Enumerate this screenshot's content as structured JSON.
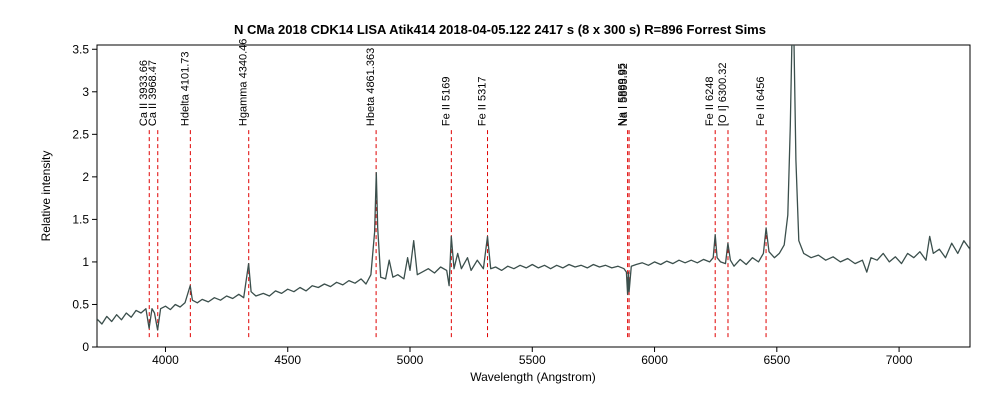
{
  "chart_data": {
    "type": "line",
    "title": "N CMa 2018 CDK14 LISA Atik414  2018-04-05.122   2417 s (8 x 300 s) R=896  Forrest Sims",
    "xlabel": "Wavelength (Angstrom)",
    "ylabel": "Relative intensity",
    "xlim": [
      3720,
      7290
    ],
    "ylim": [
      0,
      3.55
    ],
    "x_ticks": [
      4000,
      4500,
      5000,
      5500,
      6000,
      6500,
      7000
    ],
    "y_ticks": [
      0,
      0.5,
      1,
      1.5,
      2,
      2.5,
      3,
      3.5
    ],
    "grid": false,
    "legend": "none",
    "colors": {
      "spectrum": "#3b4f4c",
      "line_markers": "#e00000",
      "axes": "#000000"
    },
    "line_markers": [
      {
        "wavelength": 3933.66,
        "label": "Ca II 3933.66"
      },
      {
        "wavelength": 3968.47,
        "label": "Ca II 3968.47"
      },
      {
        "wavelength": 4101.73,
        "label": "Hdelta 4101.73"
      },
      {
        "wavelength": 4340.46,
        "label": "Hgamma 4340.46"
      },
      {
        "wavelength": 4861.363,
        "label": "Hbeta 4861.363"
      },
      {
        "wavelength": 5169,
        "label": "Fe II 5169"
      },
      {
        "wavelength": 5317,
        "label": "Fe II 5317"
      },
      {
        "wavelength": 5889.95,
        "label": "Na I 5889.95"
      },
      {
        "wavelength": 5895.92,
        "label": "Na I 5895.92"
      },
      {
        "wavelength": 6248,
        "label": "Fe II 6248"
      },
      {
        "wavelength": 6300.32,
        "label": "[O I] 6300.32"
      },
      {
        "wavelength": 6456,
        "label": "Fe II 6456"
      }
    ],
    "series": [
      {
        "points": [
          [
            3720,
            0.33
          ],
          [
            3740,
            0.27
          ],
          [
            3760,
            0.36
          ],
          [
            3780,
            0.3
          ],
          [
            3800,
            0.38
          ],
          [
            3820,
            0.32
          ],
          [
            3840,
            0.4
          ],
          [
            3860,
            0.35
          ],
          [
            3880,
            0.43
          ],
          [
            3900,
            0.4
          ],
          [
            3920,
            0.45
          ],
          [
            3933,
            0.22
          ],
          [
            3945,
            0.45
          ],
          [
            3955,
            0.4
          ],
          [
            3968,
            0.2
          ],
          [
            3980,
            0.45
          ],
          [
            4000,
            0.48
          ],
          [
            4020,
            0.44
          ],
          [
            4040,
            0.5
          ],
          [
            4060,
            0.47
          ],
          [
            4080,
            0.52
          ],
          [
            4101,
            0.72
          ],
          [
            4110,
            0.55
          ],
          [
            4130,
            0.52
          ],
          [
            4150,
            0.56
          ],
          [
            4175,
            0.53
          ],
          [
            4200,
            0.58
          ],
          [
            4225,
            0.55
          ],
          [
            4250,
            0.6
          ],
          [
            4275,
            0.57
          ],
          [
            4300,
            0.62
          ],
          [
            4320,
            0.58
          ],
          [
            4340,
            0.98
          ],
          [
            4350,
            0.65
          ],
          [
            4370,
            0.6
          ],
          [
            4400,
            0.63
          ],
          [
            4425,
            0.6
          ],
          [
            4450,
            0.66
          ],
          [
            4475,
            0.63
          ],
          [
            4500,
            0.68
          ],
          [
            4525,
            0.65
          ],
          [
            4550,
            0.7
          ],
          [
            4575,
            0.66
          ],
          [
            4600,
            0.72
          ],
          [
            4625,
            0.7
          ],
          [
            4650,
            0.74
          ],
          [
            4675,
            0.71
          ],
          [
            4700,
            0.76
          ],
          [
            4725,
            0.73
          ],
          [
            4750,
            0.78
          ],
          [
            4775,
            0.75
          ],
          [
            4800,
            0.8
          ],
          [
            4820,
            0.74
          ],
          [
            4840,
            0.85
          ],
          [
            4855,
            1.35
          ],
          [
            4862,
            2.05
          ],
          [
            4868,
            1.4
          ],
          [
            4880,
            0.82
          ],
          [
            4900,
            0.8
          ],
          [
            4915,
            1.02
          ],
          [
            4930,
            0.82
          ],
          [
            4950,
            0.85
          ],
          [
            4975,
            0.8
          ],
          [
            4990,
            1.05
          ],
          [
            5000,
            0.9
          ],
          [
            5015,
            1.25
          ],
          [
            5030,
            0.85
          ],
          [
            5050,
            0.88
          ],
          [
            5075,
            0.92
          ],
          [
            5100,
            0.87
          ],
          [
            5125,
            0.94
          ],
          [
            5150,
            0.9
          ],
          [
            5160,
            0.72
          ],
          [
            5169,
            1.3
          ],
          [
            5180,
            0.92
          ],
          [
            5195,
            1.1
          ],
          [
            5210,
            0.92
          ],
          [
            5235,
            1.05
          ],
          [
            5250,
            0.9
          ],
          [
            5275,
            1.02
          ],
          [
            5300,
            0.92
          ],
          [
            5317,
            1.3
          ],
          [
            5330,
            0.92
          ],
          [
            5350,
            0.94
          ],
          [
            5375,
            0.9
          ],
          [
            5400,
            0.95
          ],
          [
            5425,
            0.92
          ],
          [
            5450,
            0.96
          ],
          [
            5475,
            0.93
          ],
          [
            5500,
            0.97
          ],
          [
            5525,
            0.93
          ],
          [
            5550,
            0.96
          ],
          [
            5575,
            0.92
          ],
          [
            5600,
            0.96
          ],
          [
            5625,
            0.93
          ],
          [
            5650,
            0.97
          ],
          [
            5675,
            0.94
          ],
          [
            5700,
            0.96
          ],
          [
            5725,
            0.93
          ],
          [
            5750,
            0.97
          ],
          [
            5775,
            0.94
          ],
          [
            5800,
            0.96
          ],
          [
            5825,
            0.93
          ],
          [
            5850,
            0.95
          ],
          [
            5875,
            0.92
          ],
          [
            5885,
            0.88
          ],
          [
            5890,
            0.62
          ],
          [
            5893,
            0.88
          ],
          [
            5896,
            0.65
          ],
          [
            5905,
            0.95
          ],
          [
            5925,
            0.97
          ],
          [
            5950,
            0.99
          ],
          [
            5975,
            0.96
          ],
          [
            6000,
            1.0
          ],
          [
            6025,
            0.97
          ],
          [
            6050,
            1.01
          ],
          [
            6075,
            0.98
          ],
          [
            6100,
            1.02
          ],
          [
            6125,
            0.99
          ],
          [
            6150,
            1.02
          ],
          [
            6175,
            0.99
          ],
          [
            6200,
            1.03
          ],
          [
            6225,
            1.0
          ],
          [
            6240,
            1.05
          ],
          [
            6248,
            1.32
          ],
          [
            6256,
            1.05
          ],
          [
            6270,
            1.0
          ],
          [
            6290,
            0.98
          ],
          [
            6300,
            1.22
          ],
          [
            6310,
            1.02
          ],
          [
            6325,
            0.95
          ],
          [
            6350,
            1.03
          ],
          [
            6375,
            0.97
          ],
          [
            6400,
            1.05
          ],
          [
            6425,
            1.0
          ],
          [
            6445,
            1.1
          ],
          [
            6456,
            1.4
          ],
          [
            6468,
            1.12
          ],
          [
            6490,
            1.05
          ],
          [
            6510,
            1.1
          ],
          [
            6530,
            1.2
          ],
          [
            6545,
            1.55
          ],
          [
            6555,
            2.6
          ],
          [
            6562,
            3.65
          ],
          [
            6570,
            3.65
          ],
          [
            6578,
            2.2
          ],
          [
            6590,
            1.25
          ],
          [
            6610,
            1.1
          ],
          [
            6640,
            1.05
          ],
          [
            6670,
            1.08
          ],
          [
            6700,
            1.02
          ],
          [
            6730,
            1.06
          ],
          [
            6760,
            1.0
          ],
          [
            6790,
            1.04
          ],
          [
            6820,
            0.98
          ],
          [
            6850,
            1.02
          ],
          [
            6868,
            0.88
          ],
          [
            6885,
            1.05
          ],
          [
            6910,
            1.02
          ],
          [
            6935,
            1.1
          ],
          [
            6960,
            1.0
          ],
          [
            6985,
            1.06
          ],
          [
            7010,
            0.98
          ],
          [
            7035,
            1.1
          ],
          [
            7060,
            1.05
          ],
          [
            7085,
            1.12
          ],
          [
            7110,
            1.02
          ],
          [
            7125,
            1.3
          ],
          [
            7140,
            1.1
          ],
          [
            7165,
            1.15
          ],
          [
            7190,
            1.05
          ],
          [
            7215,
            1.22
          ],
          [
            7240,
            1.1
          ],
          [
            7265,
            1.25
          ],
          [
            7290,
            1.15
          ]
        ]
      }
    ]
  }
}
